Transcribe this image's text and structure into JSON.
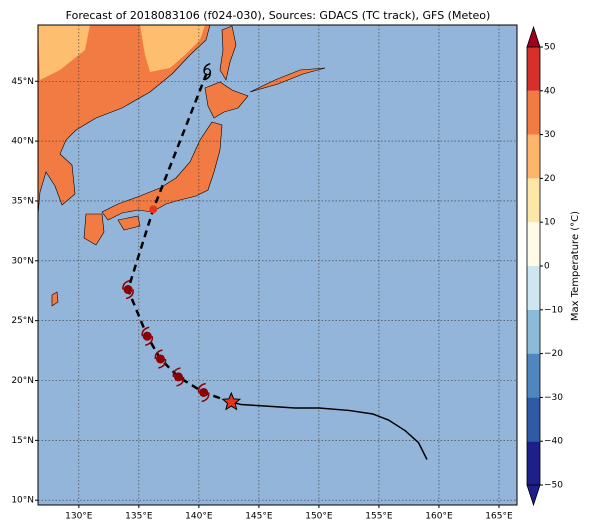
{
  "chart_data": {
    "type": "map",
    "title": "Forecast of 2018083106 (f024-030), Sources: GDACS (TC track), GFS (Meteo)",
    "xlim": [
      126.6,
      166.5
    ],
    "ylim": [
      9.6,
      49.7
    ],
    "xticks": [
      {
        "value": 130,
        "label": "130°E"
      },
      {
        "value": 135,
        "label": "135°E"
      },
      {
        "value": 140,
        "label": "140°E"
      },
      {
        "value": 145,
        "label": "145°E"
      },
      {
        "value": 150,
        "label": "150°E"
      },
      {
        "value": 155,
        "label": "155°E"
      },
      {
        "value": 160,
        "label": "160°E"
      },
      {
        "value": 165,
        "label": "165°E"
      }
    ],
    "yticks": [
      {
        "value": 10,
        "label": "10°N"
      },
      {
        "value": 15,
        "label": "15°N"
      },
      {
        "value": 20,
        "label": "20°N"
      },
      {
        "value": 25,
        "label": "25°N"
      },
      {
        "value": 30,
        "label": "30°N"
      },
      {
        "value": 35,
        "label": "35°N"
      },
      {
        "value": 40,
        "label": "40°N"
      },
      {
        "value": 45,
        "label": "45°N"
      }
    ],
    "grid": true,
    "past_track": {
      "lon": [
        159.0,
        158.3,
        157.2,
        155.8,
        154.5,
        152.5,
        150.0,
        148.0,
        145.0,
        143.5,
        142.7
      ],
      "lat": [
        13.4,
        14.8,
        15.8,
        16.7,
        17.2,
        17.5,
        17.7,
        17.7,
        17.9,
        18.0,
        18.2
      ],
      "color": "#000000"
    },
    "forecast_track": {
      "lon": [
        142.7,
        140.4,
        138.3,
        136.8,
        135.7,
        134.1,
        136.2,
        140.7
      ],
      "lat": [
        18.2,
        19.0,
        20.3,
        21.8,
        23.7,
        27.6,
        34.3,
        45.8
      ],
      "color": "#8b0000"
    },
    "colorbar": {
      "label": "Max Temperature (°C)",
      "ticks": [
        {
          "value": -50,
          "label": "−50"
        },
        {
          "value": -40,
          "label": "−40"
        },
        {
          "value": -30,
          "label": "−30"
        },
        {
          "value": -20,
          "label": "−20"
        },
        {
          "value": -10,
          "label": "−10"
        },
        0,
        10,
        20,
        30,
        40,
        50
      ],
      "colors": [
        "#1f1f8a",
        "#2f5aa6",
        "#4f86c0",
        "#8cbad9",
        "#cde6f0",
        "#fffbe6",
        "#fde7a6",
        "#fdb56c",
        "#f27a43",
        "#d7302a",
        "#a0001e"
      ]
    }
  }
}
